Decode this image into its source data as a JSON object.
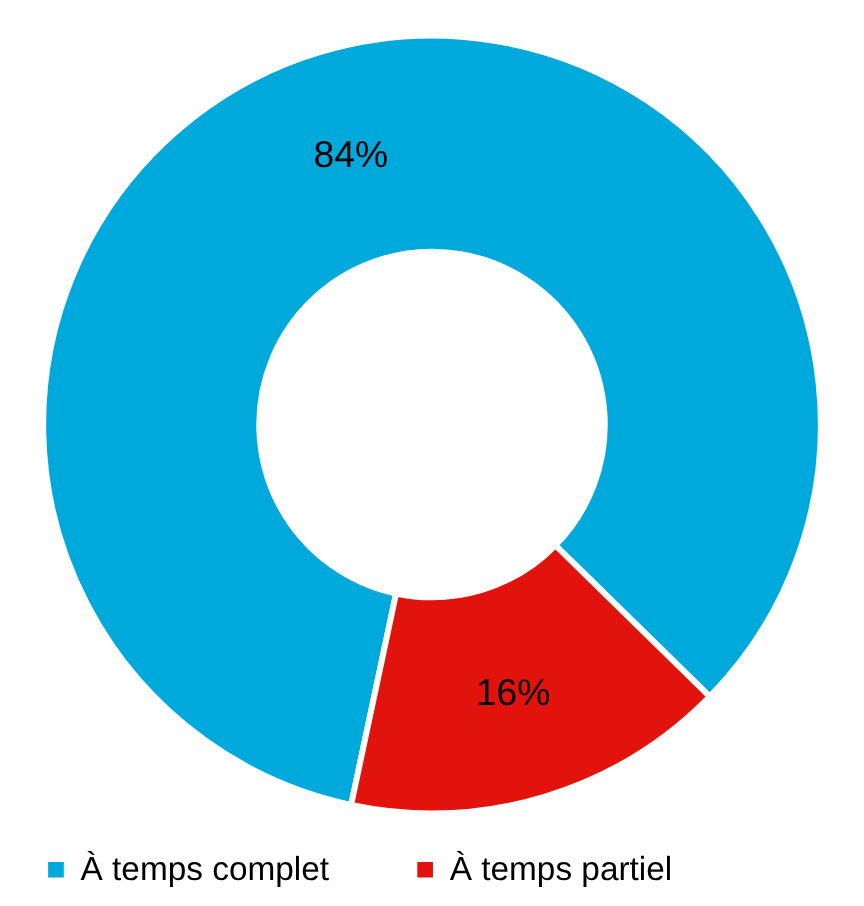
{
  "chart_data": {
    "type": "donut",
    "categories": [
      "À temps complet",
      "À temps partiel"
    ],
    "values": [
      84,
      16
    ],
    "colors": [
      "#00a9dc",
      "#e2120d"
    ],
    "value_labels": [
      "84%",
      "16%"
    ],
    "legend": "bottom"
  }
}
